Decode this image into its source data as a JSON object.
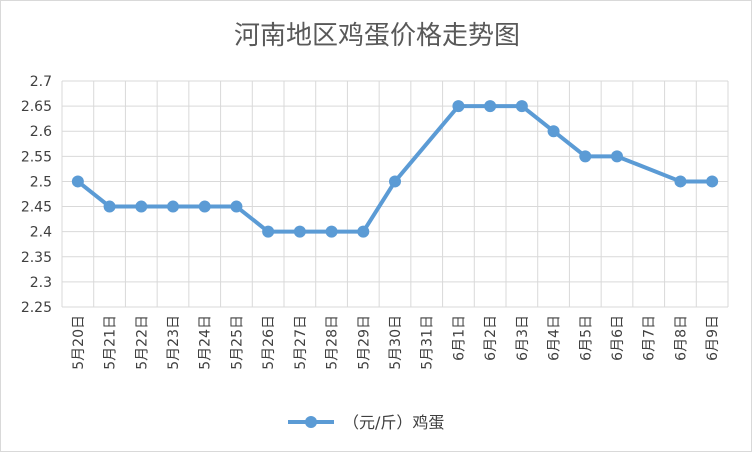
{
  "chart_data": {
    "type": "line",
    "title": "河南地区鸡蛋价格走势图",
    "xlabel": "",
    "ylabel": "",
    "ylim": [
      2.25,
      2.7
    ],
    "yticks": [
      "2.25",
      "2.3",
      "2.35",
      "2.4",
      "2.45",
      "2.5",
      "2.55",
      "2.6",
      "2.65",
      "2.7"
    ],
    "grid": true,
    "legend_position": "bottom",
    "categories": [
      "5月20日",
      "5月21日",
      "5月22日",
      "5月23日",
      "5月24日",
      "5月25日",
      "5月26日",
      "5月27日",
      "5月28日",
      "5月29日",
      "5月30日",
      "5月31日",
      "6月1日",
      "6月2日",
      "6月3日",
      "6月4日",
      "6月5日",
      "6月6日",
      "6月7日",
      "6月8日",
      "6月9日"
    ],
    "series": [
      {
        "name": "（元/斤）鸡蛋",
        "color": "#5b9bd5",
        "values": [
          2.5,
          2.45,
          2.45,
          2.45,
          2.45,
          2.45,
          2.4,
          2.4,
          2.4,
          2.4,
          2.5,
          null,
          2.65,
          2.65,
          2.65,
          2.6,
          2.55,
          2.55,
          null,
          2.5,
          2.5
        ]
      }
    ]
  }
}
